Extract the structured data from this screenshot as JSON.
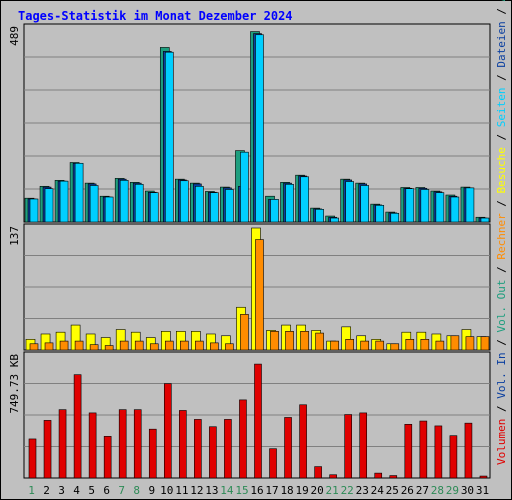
{
  "chart_data": {
    "type": "bar",
    "title": "Tages-Statistik im Monat Dezember 2024",
    "categories": [
      "1",
      "2",
      "3",
      "4",
      "5",
      "6",
      "7",
      "8",
      "9",
      "10",
      "11",
      "12",
      "13",
      "14",
      "15",
      "16",
      "17",
      "18",
      "19",
      "20",
      "21",
      "22",
      "23",
      "24",
      "25",
      "26",
      "27",
      "28",
      "29",
      "30",
      "31"
    ],
    "weekend_days": [
      "1",
      "7",
      "8",
      "14",
      "15",
      "21",
      "22",
      "28",
      "29"
    ],
    "colors": {
      "title": "#0000ff",
      "background": "#c0c0c0",
      "border": "#000000",
      "grid": "#808080",
      "weekday_label": "#000000",
      "weekend_label": "#2e8b57",
      "anfragen": "#1e9e7e",
      "dateien": "#0a3fa0",
      "seiten": "#00cfff",
      "besuche": "#ffff00",
      "rechner": "#ff8c00",
      "volumen": "#e00000"
    },
    "panels": [
      {
        "id": "requests",
        "ymax_label": "489",
        "ymax": 489,
        "series": [
          {
            "name": "Anfragen",
            "values": [
              60,
              90,
              105,
              150,
              98,
              65,
              110,
              100,
              78,
              440,
              108,
              98,
              77,
              88,
              180,
              480,
              65,
              100,
              118,
              35,
              15,
              108,
              98,
              45,
              25,
              87,
              87,
              78,
              68,
              88,
              12
            ]
          },
          {
            "name": "Dateien",
            "values": [
              58,
              88,
              103,
              148,
              96,
              63,
              108,
              98,
              75,
              430,
              106,
              96,
              75,
              86,
              90,
              475,
              57,
              98,
              116,
              33,
              12,
              106,
              96,
              43,
              23,
              85,
              85,
              76,
              65,
              86,
              10
            ]
          },
          {
            "name": "Seiten",
            "values": [
              58,
              84,
              103,
              148,
              92,
              63,
              105,
              95,
              74,
              428,
              104,
              90,
              74,
              82,
              176,
              472,
              57,
              95,
              114,
              32,
              10,
              102,
              92,
              42,
              22,
              84,
              82,
              74,
              63,
              86,
              10
            ]
          }
        ]
      },
      {
        "id": "visits",
        "ymax_label": "137",
        "ymax": 137,
        "series": [
          {
            "name": "Besuche",
            "values": [
              12,
              18,
              20,
              28,
              18,
              14,
              23,
              20,
              14,
              21,
              21,
              21,
              18,
              16,
              48,
              137,
              22,
              28,
              28,
              22,
              10,
              26,
              16,
              12,
              7,
              20,
              20,
              18,
              16,
              23,
              15
            ]
          },
          {
            "name": "Rechner",
            "values": [
              7,
              8,
              10,
              10,
              6,
              5,
              10,
              10,
              7,
              10,
              10,
              10,
              8,
              7,
              40,
              124,
              21,
              21,
              21,
              19,
              10,
              12,
              10,
              10,
              7,
              12,
              12,
              10,
              16,
              15,
              15
            ]
          }
        ]
      },
      {
        "id": "volume",
        "ymax_label": "749.73 KB",
        "ymax": 749.73,
        "series": [
          {
            "name": "Volumen",
            "values": [
              240,
              354,
              420,
              635,
              400,
              256,
              420,
              420,
              300,
              580,
              415,
              360,
              315,
              360,
              480,
              700,
              180,
              372,
              450,
              70,
              20,
              390,
              400,
              30,
              15,
              330,
              350,
              320,
              260,
              337,
              12
            ]
          }
        ]
      }
    ],
    "right_legend": [
      {
        "text": "Volumen",
        "color": "#e00000"
      },
      {
        "text": " / ",
        "color": "#000000"
      },
      {
        "text": "Vol. In",
        "color": "#0a3fa0"
      },
      {
        "text": " / ",
        "color": "#000000"
      },
      {
        "text": "Vol. Out",
        "color": "#1e9e7e"
      },
      {
        "text": " / ",
        "color": "#000000"
      },
      {
        "text": "Rechner",
        "color": "#ff8c00"
      },
      {
        "text": " / ",
        "color": "#000000"
      },
      {
        "text": "Besuche",
        "color": "#ffff00"
      },
      {
        "text": " / ",
        "color": "#000000"
      },
      {
        "text": "Seiten",
        "color": "#00cfff"
      },
      {
        "text": " / ",
        "color": "#000000"
      },
      {
        "text": "Dateien",
        "color": "#0a3fa0"
      },
      {
        "text": " / ",
        "color": "#000000"
      },
      {
        "text": "Anfragen",
        "color": "#1e9e7e"
      }
    ]
  }
}
